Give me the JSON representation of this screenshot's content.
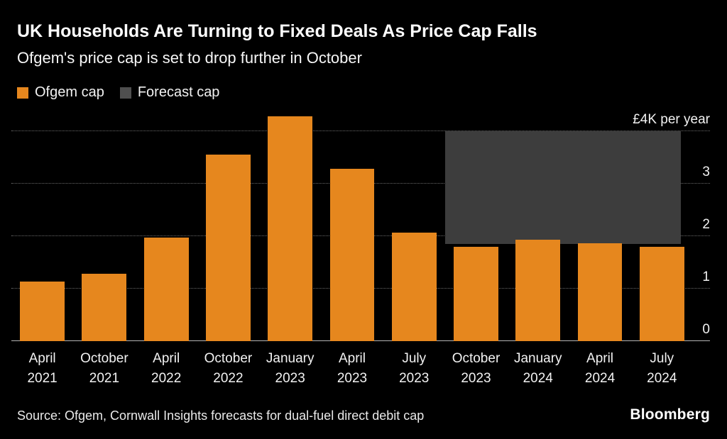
{
  "chart_data": {
    "type": "bar",
    "title": "UK Households Are Turning to Fixed Deals As Price Cap Falls",
    "subtitle": "Ofgem's price cap is set to drop further in October",
    "legend": [
      {
        "label": "Ofgem cap",
        "color": "#E6871E"
      },
      {
        "label": "Forecast cap",
        "color": "#4F4F4F"
      }
    ],
    "legend_position": "top-left",
    "categories": [
      "April 2021",
      "October 2021",
      "April 2022",
      "October 2022",
      "January 2023",
      "April 2023",
      "July 2023",
      "October 2023",
      "January 2024",
      "April 2024",
      "July 2024"
    ],
    "values": [
      1.14,
      1.28,
      1.97,
      3.55,
      4.28,
      3.28,
      2.07,
      1.8,
      1.93,
      1.86,
      1.8
    ],
    "series_name": "Ofgem cap",
    "unit": "GBP thousands per year",
    "bar_color": "#E6871E",
    "forecast_region": {
      "label": "Forecast cap",
      "start_category": "October 2023",
      "end_category": "July 2024",
      "value_top": 4.0,
      "value_bottom": 1.85,
      "color": "#3D3D3D"
    },
    "yticks": [
      {
        "value": 4,
        "label": "£4K per year"
      },
      {
        "value": 3,
        "label": "3"
      },
      {
        "value": 2,
        "label": "2"
      },
      {
        "value": 1,
        "label": "1"
      },
      {
        "value": 0,
        "label": "0"
      }
    ],
    "ylim": [
      0,
      4.34
    ],
    "grid": "horizontal-dotted"
  },
  "footer": {
    "source": "Source: Ofgem, Cornwall Insights forecasts for dual-fuel direct debit cap",
    "brand": "Bloomberg"
  }
}
